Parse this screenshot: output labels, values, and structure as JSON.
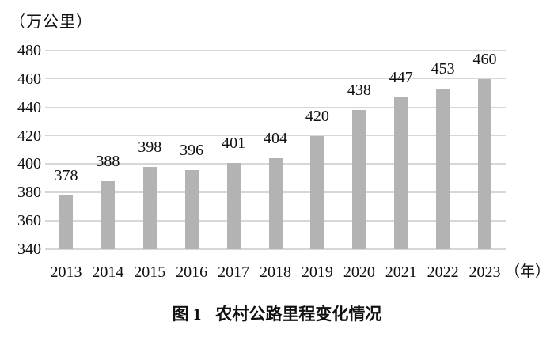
{
  "chart_data": {
    "type": "bar",
    "title": "图1 农村公路里程变化情况",
    "y_unit_label": "（万公里）",
    "x_unit_label": "（年）",
    "categories": [
      "2013",
      "2014",
      "2015",
      "2016",
      "2017",
      "2018",
      "2019",
      "2020",
      "2021",
      "2022",
      "2023"
    ],
    "values": [
      378,
      388,
      398,
      396,
      401,
      404,
      420,
      438,
      447,
      453,
      460
    ],
    "y_ticks": [
      340,
      360,
      380,
      400,
      420,
      440,
      460,
      480
    ],
    "ylim": [
      340,
      480
    ],
    "grid": true,
    "legend": "none",
    "bar_color": "#b3b3b3",
    "grid_color": "#d7d7d7",
    "text_color": "#111111"
  },
  "caption": {
    "figure_label": "图 1",
    "figure_title": "农村公路里程变化情况"
  }
}
